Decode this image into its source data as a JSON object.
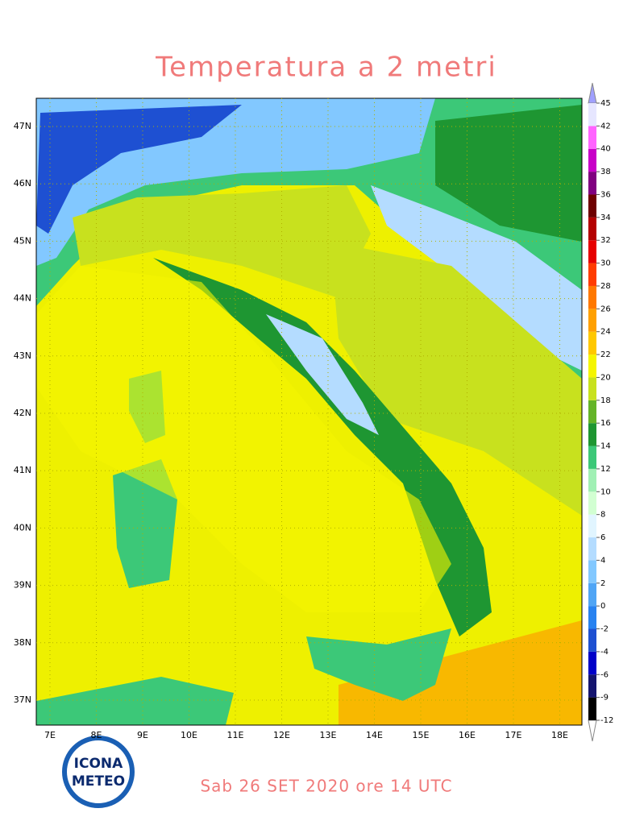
{
  "title": "Temperatura a 2 metri",
  "footer": "Sab 26 SET 2020 ore 14 UTC",
  "logo": {
    "line1": "ICONA",
    "line2": "METEO"
  },
  "lon_labels": [
    "7E",
    "8E",
    "9E",
    "10E",
    "11E",
    "12E",
    "13E",
    "14E",
    "15E",
    "16E",
    "17E",
    "18E"
  ],
  "lat_labels": [
    "47N",
    "46N",
    "45N",
    "44N",
    "43N",
    "42N",
    "41N",
    "40N",
    "39N",
    "38N",
    "37N"
  ],
  "colorbar": {
    "levels": [
      -12,
      -9,
      -6,
      -4,
      -2,
      0,
      2,
      4,
      6,
      8,
      10,
      12,
      14,
      16,
      18,
      20,
      22,
      24,
      26,
      28,
      30,
      32,
      34,
      36,
      38,
      40,
      42,
      45
    ],
    "colors": [
      "#000000",
      "#14146e",
      "#0000c8",
      "#1e50d2",
      "#2882f0",
      "#50a5f5",
      "#82c8ff",
      "#b4dcff",
      "#e1f5ff",
      "#d2ffd2",
      "#a0f0b4",
      "#3cc878",
      "#1e9632",
      "#64b428",
      "#c8e11e",
      "#f5f500",
      "#ffc800",
      "#ffa000",
      "#ff7800",
      "#ff3c00",
      "#e60000",
      "#b40000",
      "#6e0000",
      "#800080",
      "#c800c8",
      "#ff64ff",
      "#e6e6ff"
    ]
  }
}
